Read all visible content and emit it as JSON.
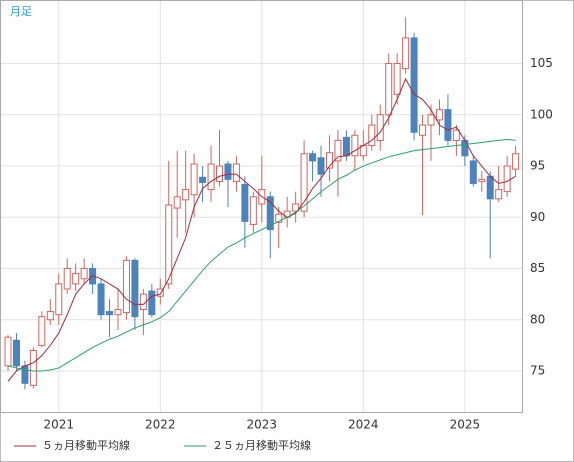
{
  "chart_data": {
    "type": "candlestick",
    "period_label": "月足",
    "categories": [
      null,
      null,
      null,
      null,
      null,
      null,
      "2021",
      null,
      null,
      null,
      null,
      null,
      null,
      null,
      null,
      null,
      null,
      null,
      "2022",
      null,
      null,
      null,
      null,
      null,
      null,
      null,
      null,
      null,
      null,
      null,
      "2023",
      null,
      null,
      null,
      null,
      null,
      null,
      null,
      null,
      null,
      null,
      null,
      "2024",
      null,
      null,
      null,
      null,
      null,
      null,
      null,
      null,
      null,
      null,
      null,
      "2025",
      null,
      null,
      null,
      null,
      null,
      null
    ],
    "open": [
      75.5,
      78,
      75.5,
      73.6,
      77.5,
      80,
      80.5,
      83,
      83.5,
      84,
      85,
      83.5,
      80.8,
      80.5,
      80.7,
      85.8,
      81,
      82.8,
      82.3,
      83.5,
      90.9,
      91.7,
      92.2,
      93.9,
      92.7,
      93.5,
      95.2,
      93.5,
      93.2,
      89.3,
      91.3,
      92,
      89.5,
      90,
      90.6,
      90.6,
      96.2,
      95.8,
      94.8,
      95.5,
      97.8,
      96,
      96,
      97,
      97.5,
      100,
      102,
      104.5,
      107.5,
      98,
      99,
      99.5,
      100.5,
      97.5,
      97.5,
      95.5,
      93.5,
      94,
      91.8,
      92.5,
      94.7
    ],
    "high": [
      78.5,
      78.7,
      76,
      77.3,
      80.8,
      82,
      84.5,
      86,
      85.5,
      86,
      85.5,
      84,
      82,
      83,
      86.2,
      86,
      83,
      83.5,
      84,
      95.5,
      96.5,
      96.5,
      96.2,
      95,
      97,
      98.5,
      95.5,
      96,
      94,
      92.5,
      96,
      92.5,
      91,
      92,
      92.5,
      97.5,
      96.5,
      97,
      98,
      98.5,
      98.5,
      98.5,
      98.5,
      100,
      101,
      106,
      106,
      109.5,
      108,
      100,
      101,
      101.5,
      102,
      99,
      98,
      96,
      94.5,
      94.5,
      95,
      96,
      97
    ],
    "low": [
      75,
      75,
      73.2,
      73.3,
      77.3,
      79.5,
      79.5,
      82.5,
      82.8,
      83.5,
      82.5,
      80,
      78.3,
      79,
      80,
      79,
      78.5,
      80.2,
      81.5,
      83,
      88,
      88.5,
      90,
      91.5,
      91.5,
      93,
      91,
      92.5,
      87,
      88.5,
      89.5,
      86,
      87,
      89,
      89.5,
      90,
      93.5,
      92,
      93.5,
      92,
      95.5,
      94.5,
      95.5,
      96.5,
      96.5,
      99,
      101,
      104,
      97.5,
      90.2,
      95.5,
      98,
      97,
      96,
      95,
      93,
      92.5,
      86,
      91.5,
      92,
      94
    ],
    "close": [
      78.3,
      75.5,
      73.8,
      77,
      80.3,
      80.8,
      83.5,
      85,
      84.5,
      85,
      83.5,
      80.5,
      80.5,
      81,
      85.8,
      80.3,
      82.5,
      80.5,
      83,
      91.2,
      92,
      92.7,
      95.2,
      93.4,
      95.2,
      95,
      93.7,
      95.2,
      89.6,
      92,
      92.7,
      88.8,
      90.3,
      90.6,
      91.3,
      96.2,
      95.5,
      94.2,
      96.3,
      97.5,
      96,
      98,
      97,
      99,
      100,
      105,
      105,
      107.5,
      98.3,
      99,
      100,
      100.5,
      97.5,
      98.5,
      96,
      93.3,
      93.7,
      91.8,
      92.7,
      95,
      96.2
    ],
    "up_color": "#d2645f",
    "down_color": "#4a83bd",
    "series": [
      {
        "name": "５ヵ月移動平均線",
        "color": "#a8283c",
        "values": [
          74,
          75,
          75.5,
          75.8,
          76.5,
          77.5,
          78.7,
          80.5,
          82.5,
          83.5,
          84.3,
          84,
          83.5,
          83,
          82,
          81.5,
          81.5,
          82.3,
          82.5,
          84,
          86,
          88,
          91,
          92.8,
          93.5,
          94,
          94.2,
          94.2,
          93.5,
          92.8,
          92,
          91.5,
          90.6,
          90,
          90.4,
          91.5,
          92.8,
          93.8,
          95,
          95.9,
          96,
          96.5,
          97,
          97.5,
          98.3,
          99.7,
          101.5,
          103.5,
          102,
          101.5,
          100.5,
          99,
          98.5,
          98.8,
          97.5,
          96,
          95,
          94,
          93.3,
          93.5,
          94
        ]
      },
      {
        "name": "２５ヵ月移動平均線",
        "color": "#2e9e6a",
        "values": [
          75.5,
          75.3,
          75.1,
          75,
          75,
          75.1,
          75.3,
          75.8,
          76.3,
          76.8,
          77.3,
          77.7,
          78.1,
          78.4,
          78.8,
          79.2,
          79.5,
          79.8,
          80.2,
          80.8,
          81.8,
          82.8,
          83.8,
          84.8,
          85.7,
          86.4,
          87.1,
          87.5,
          88,
          88.4,
          88.8,
          89.2,
          89.6,
          90,
          90.5,
          91.1,
          91.8,
          92.5,
          93.1,
          93.7,
          94.1,
          94.6,
          95,
          95.3,
          95.6,
          95.9,
          96.1,
          96.3,
          96.5,
          96.6,
          96.7,
          96.8,
          96.9,
          97,
          97.1,
          97.2,
          97.3,
          97.4,
          97.5,
          97.6,
          97.5
        ]
      }
    ],
    "ylim": [
      71,
      111.2
    ],
    "yticks": [
      75,
      80,
      85,
      90,
      95,
      100,
      105
    ],
    "grid": true
  }
}
